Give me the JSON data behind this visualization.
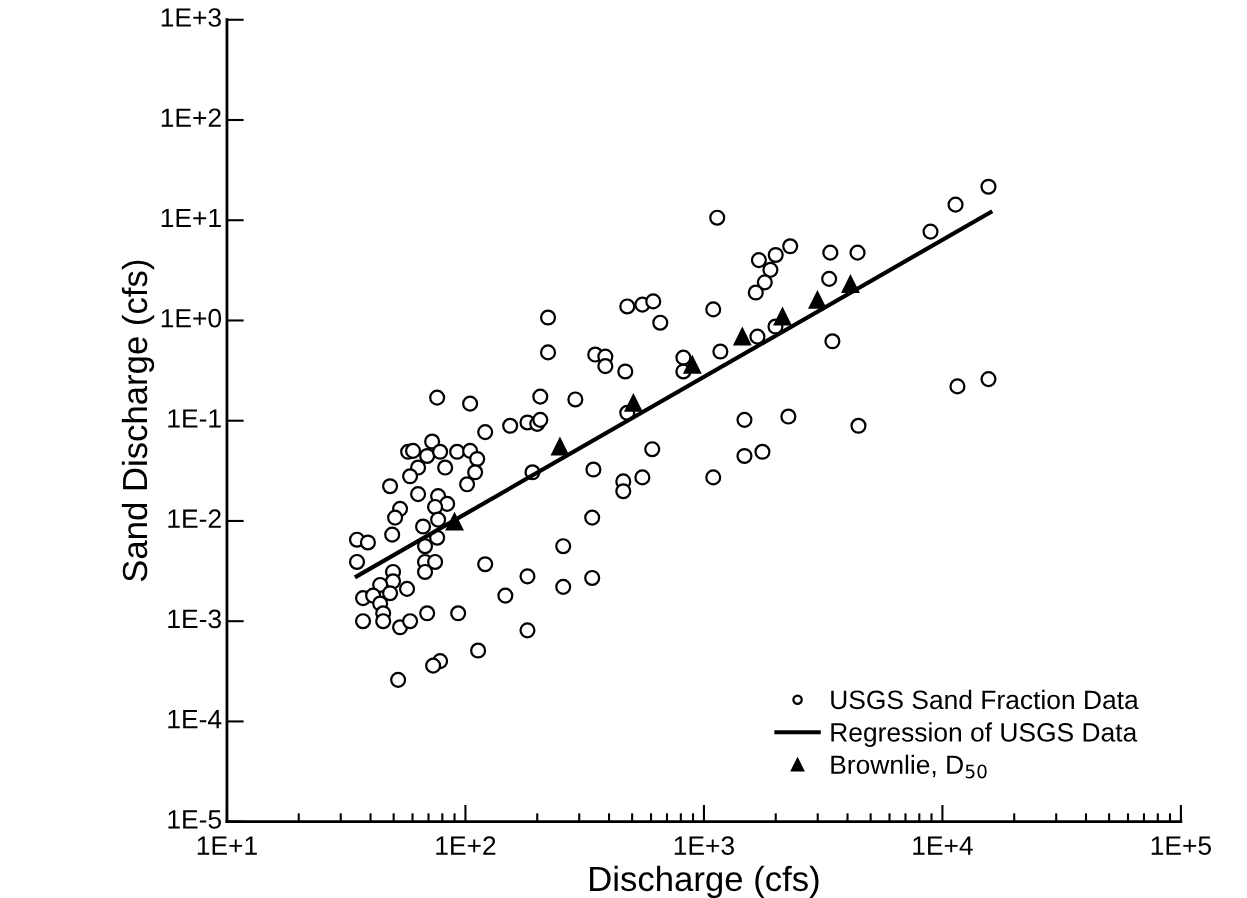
{
  "chart_data": {
    "type": "scatter",
    "xlabel": "Discharge (cfs)",
    "ylabel": "Sand Discharge (cfs)",
    "log": "xy",
    "grid": false,
    "legend": "bottom right",
    "xlim": [
      10,
      100000
    ],
    "ylim": [
      1e-05,
      1000
    ],
    "xticks": [
      {
        "value": 10,
        "label": "1E+1"
      },
      {
        "value": 100,
        "label": "1E+2"
      },
      {
        "value": 1000,
        "label": "1E+3"
      },
      {
        "value": 10000,
        "label": "1E+4"
      },
      {
        "value": 100000,
        "label": "1E+5"
      }
    ],
    "yticks": [
      {
        "value": 1e-05,
        "label": "1E-5"
      },
      {
        "value": 0.0001,
        "label": "1E-4"
      },
      {
        "value": 0.001,
        "label": "1E-3"
      },
      {
        "value": 0.01,
        "label": "1E-2"
      },
      {
        "value": 0.1,
        "label": "1E-1"
      },
      {
        "value": 1,
        "label": "1E+0"
      },
      {
        "value": 10,
        "label": "1E+1"
      },
      {
        "value": 100,
        "label": "1E+2"
      },
      {
        "value": 1000,
        "label": "1E+3"
      }
    ],
    "series": [
      {
        "name": "USGS Sand Fraction Data",
        "marker": "circle",
        "color": "#000000",
        "x": [
          121,
          154,
          182,
          200,
          57.5,
          72.5,
          60.3,
          69.1,
          78.3,
          63.3,
          82.2,
          92.3,
          104.6,
          112,
          109.8,
          101.6,
          58.6,
          48.3,
          63.3,
          76.8,
          83.8,
          74.6,
          53.2,
          50.7,
          66.4,
          76.8,
          49.3,
          35.1,
          39.0,
          35.1,
          67.7,
          76.1,
          67.7,
          74.6,
          67.7,
          49.7,
          49.7,
          43.9,
          48.3,
          56.9,
          37.2,
          41.0,
          43.9,
          45.2,
          37.2,
          45.2,
          53.2,
          58.6,
          69.1,
          93.2,
          121,
          182,
          147,
          182,
          113,
          78.3,
          73.2,
          52.2,
          191,
          477,
          552,
          613,
          1094,
          656,
          222,
          222,
          350,
          386,
          386,
          468,
          289,
          206,
          206,
          820,
          820,
          1172,
          1676,
          1995,
          3457,
          477,
          1479,
          2260,
          4446,
          1479,
          1759,
          1094,
          607,
          344,
          459,
          459,
          552,
          340,
          257,
          340,
          257,
          15600,
          11350,
          8913,
          4406,
          11560,
          15600,
          1137,
          3388,
          1700,
          2300,
          2000,
          1900,
          1800,
          1650,
          3350,
          76.1,
          104.6
        ],
        "values": [
          0.077,
          0.089,
          0.096,
          0.093,
          0.049,
          0.062,
          0.05,
          0.0445,
          0.049,
          0.0341,
          0.0341,
          0.049,
          0.05,
          0.0415,
          0.0306,
          0.0232,
          0.0279,
          0.0222,
          0.0185,
          0.0177,
          0.0148,
          0.0138,
          0.0132,
          0.0108,
          0.0088,
          0.0103,
          0.0073,
          0.0065,
          0.0061,
          0.0039,
          0.0056,
          0.0068,
          0.0039,
          0.0039,
          0.0031,
          0.0031,
          0.0025,
          0.0023,
          0.0019,
          0.0021,
          0.0017,
          0.0018,
          0.0015,
          0.0012,
          0.001,
          0.001,
          0.00087,
          0.001,
          0.0012,
          0.0012,
          0.0037,
          0.0028,
          0.0018,
          0.00081,
          0.00051,
          0.0004,
          0.00036,
          0.00026,
          0.0306,
          1.38,
          1.44,
          1.55,
          1.29,
          0.95,
          1.07,
          0.48,
          0.457,
          0.436,
          0.35,
          0.31,
          0.163,
          0.174,
          0.102,
          0.426,
          0.31,
          0.49,
          0.69,
          0.87,
          0.62,
          0.12,
          0.102,
          0.11,
          0.089,
          0.0445,
          0.049,
          0.0272,
          0.052,
          0.0326,
          0.0248,
          0.0198,
          0.0272,
          0.0108,
          0.0056,
          0.0027,
          0.0022,
          21.6,
          14.3,
          7.7,
          4.75,
          0.22,
          0.26,
          10.6,
          4.75,
          4.0,
          5.5,
          4.5,
          3.2,
          2.4,
          1.9,
          2.6,
          0.17,
          0.148
        ]
      },
      {
        "name": "Regression of USGS Data",
        "type": "line",
        "line_style": "solid",
        "color": "#000000",
        "x": [
          35,
          15900
        ],
        "values": [
          0.0028,
          12
        ]
      },
      {
        "name": "Brownlie, D$_{50}$",
        "marker": "triangle",
        "color": "#000000",
        "x": [
          90,
          249,
          506,
          894,
          1449,
          2135,
          2992,
          4115
        ],
        "values": [
          0.0098,
          0.055,
          0.15,
          0.36,
          0.69,
          1.09,
          1.6,
          2.3
        ]
      }
    ]
  }
}
